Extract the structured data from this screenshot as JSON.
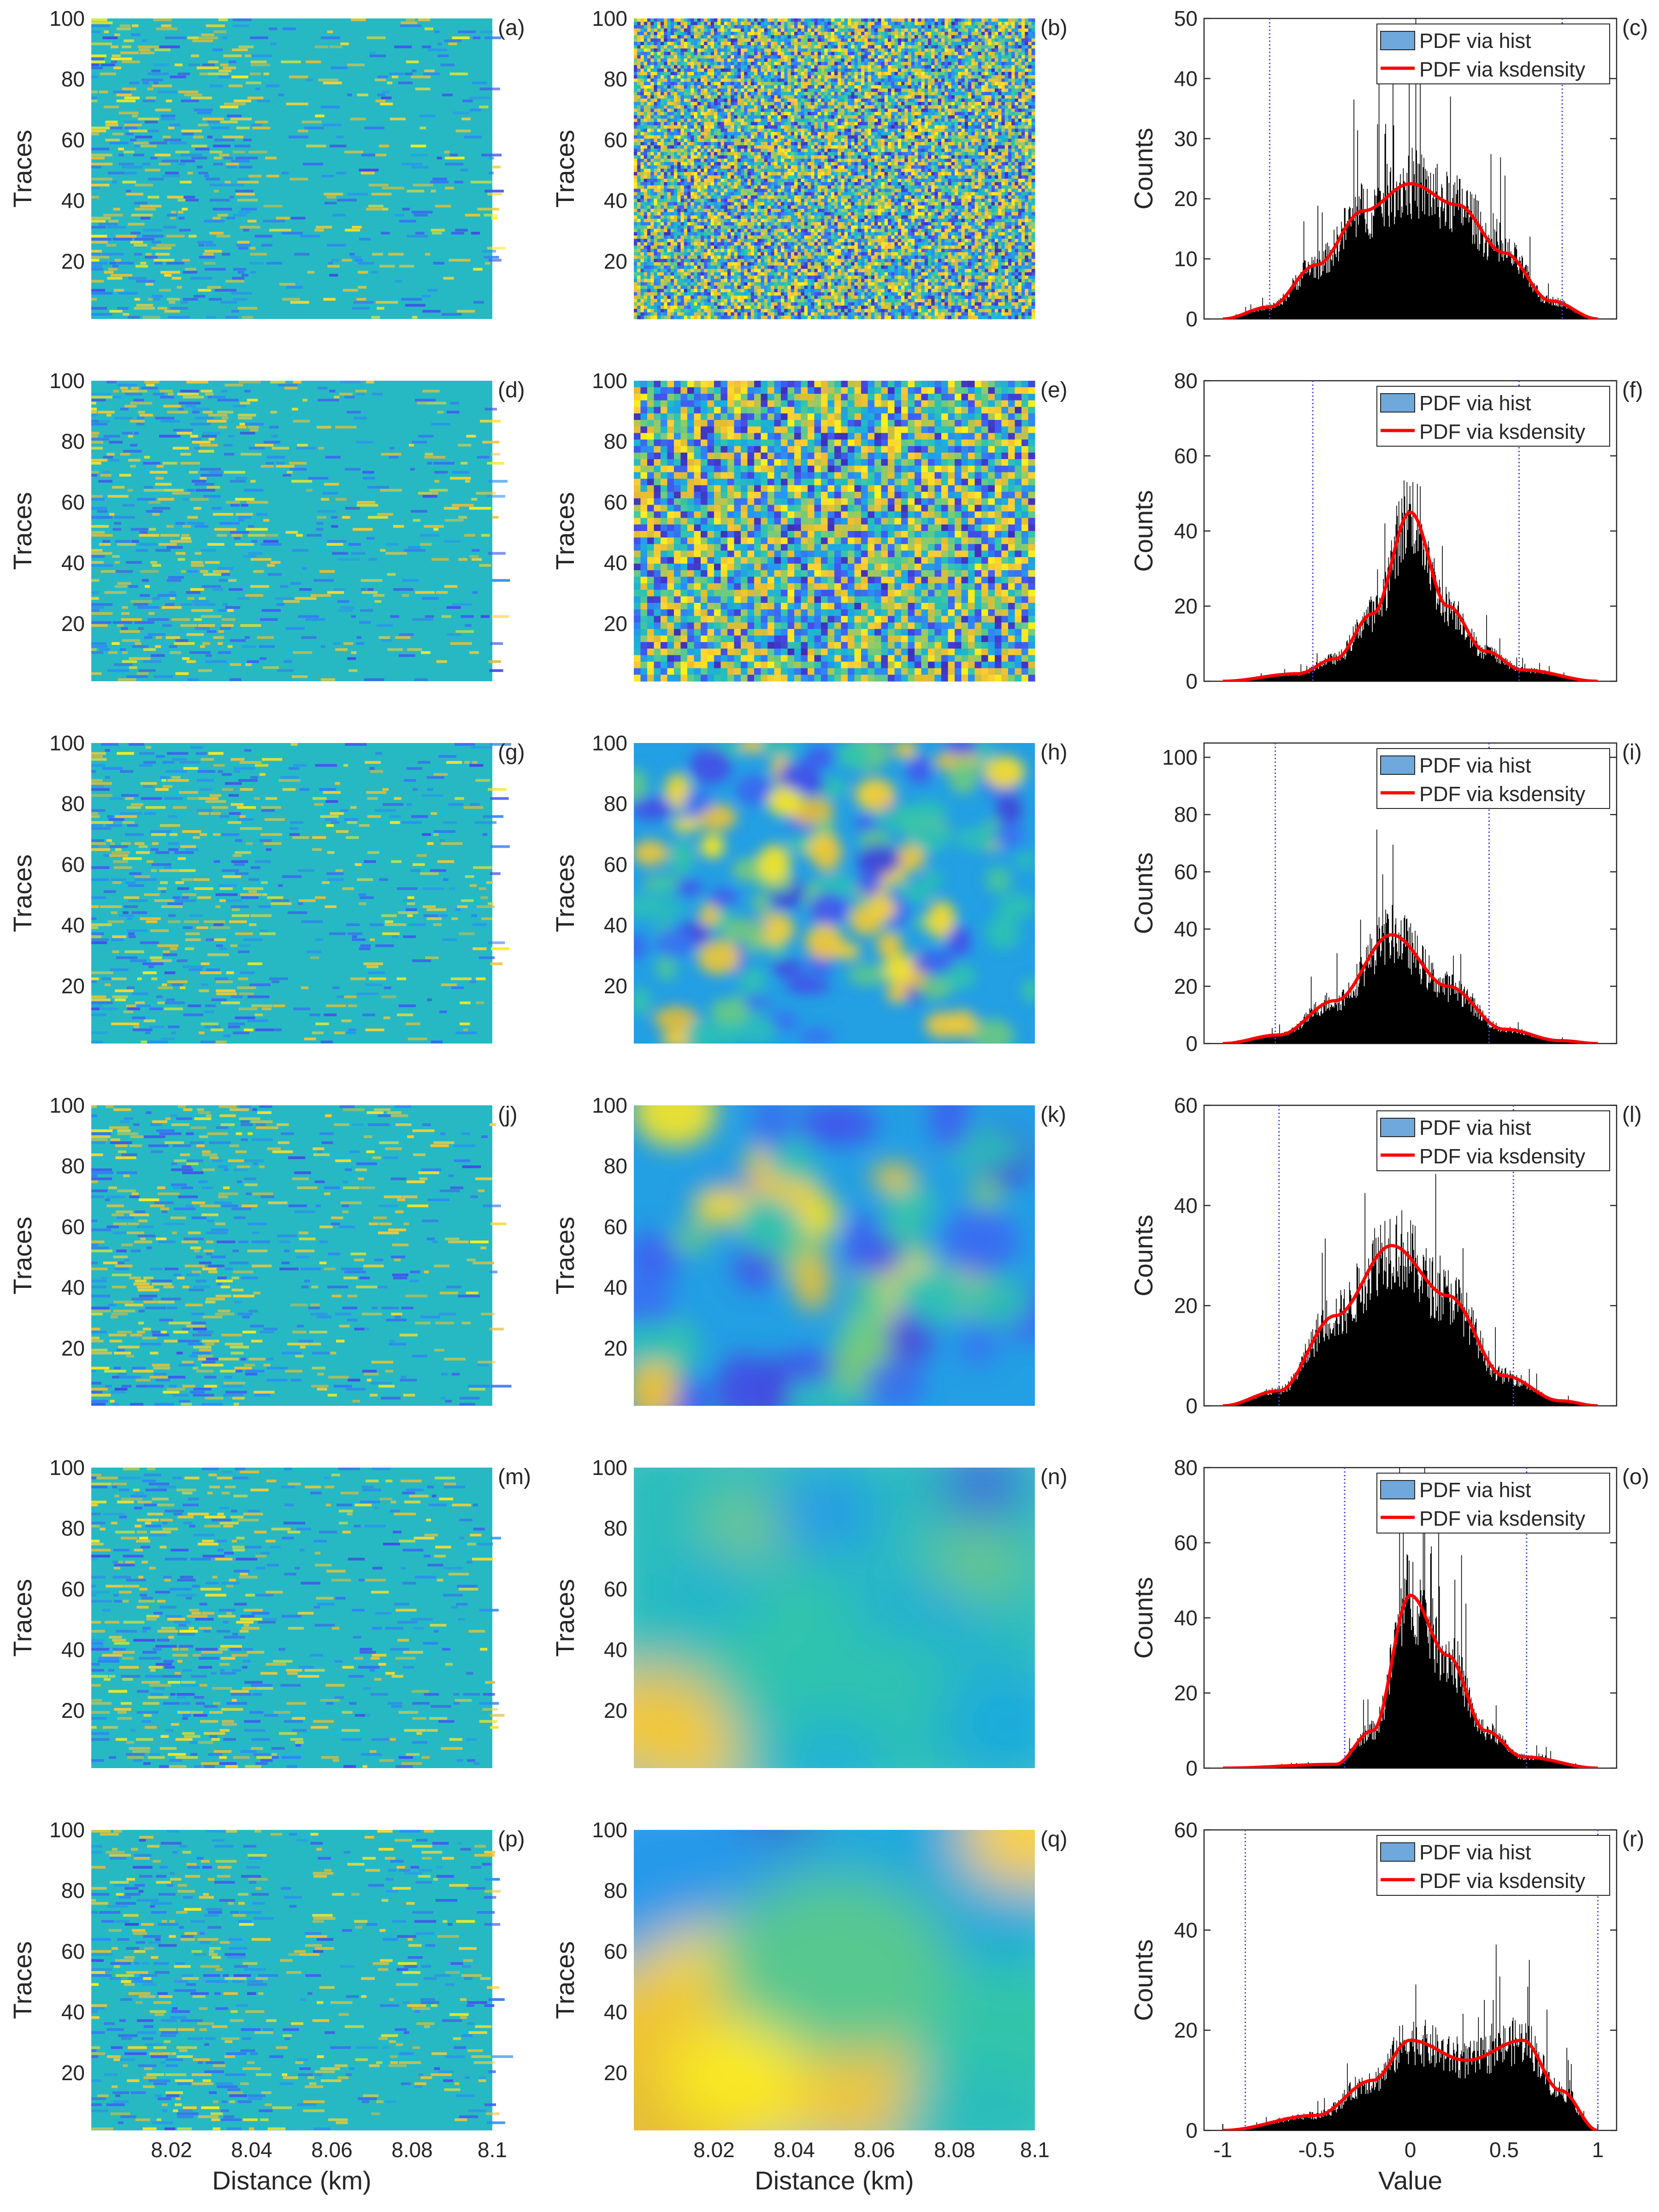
{
  "figure": {
    "x_label": "Distance (km)",
    "value_label": "Value",
    "y_label_image": "Traces",
    "y_label_hist": "Counts",
    "colormap_colors": [
      "#3e26a8",
      "#4353f0",
      "#2d8af4",
      "#1bb0d8",
      "#33c5aa",
      "#8ccc6a",
      "#e4bb34",
      "#fccf33",
      "#f9fb15"
    ],
    "hist_color": "#000000",
    "ksdensity_color": "#ff0000",
    "legend_patch_color": "#6fa8dc",
    "threshold_line_color": "#4a4adb"
  },
  "chart_data": [
    {
      "panel": "(a)",
      "type": "heatmap",
      "pattern": "traces",
      "ylabel": "Traces",
      "xlabel": "",
      "xlim": [
        8.0,
        8.1
      ],
      "ylim": [
        1,
        100
      ],
      "yticks": [
        20,
        40,
        60,
        80,
        100
      ],
      "xticks": []
    },
    {
      "panel": "(b)",
      "type": "heatmap",
      "pattern": "random-fine",
      "ylabel": "Traces",
      "xlabel": "",
      "xlim": [
        8.0,
        8.1
      ],
      "ylim": [
        1,
        100
      ],
      "yticks": [
        20,
        40,
        60,
        80,
        100
      ],
      "xticks": []
    },
    {
      "panel": "(c)",
      "type": "bar",
      "ylabel": "Counts",
      "xlabel": "",
      "xlim": [
        -1.1,
        1.1
      ],
      "ylim": [
        0,
        50
      ],
      "yticks": [
        0,
        10,
        20,
        30,
        40,
        50
      ],
      "xticks": [],
      "legend": [
        "PDF via hist",
        "PDF via ksdensity"
      ],
      "legend_position": "top-right",
      "thresholds": [
        -0.75,
        0.81
      ],
      "density": {
        "x": [
          -1.0,
          -0.75,
          -0.5,
          -0.25,
          0.0,
          0.25,
          0.5,
          0.75,
          1.0
        ],
        "y": [
          0,
          2,
          9,
          18,
          22.5,
          19,
          11,
          3,
          0
        ]
      }
    },
    {
      "panel": "(d)",
      "type": "heatmap",
      "pattern": "traces",
      "ylabel": "Traces",
      "xlabel": "",
      "xlim": [
        8.0,
        8.1
      ],
      "ylim": [
        1,
        100
      ],
      "yticks": [
        20,
        40,
        60,
        80,
        100
      ],
      "xticks": []
    },
    {
      "panel": "(e)",
      "type": "heatmap",
      "pattern": "random-medium",
      "ylabel": "Traces",
      "xlabel": "",
      "xlim": [
        8.0,
        8.1
      ],
      "ylim": [
        1,
        100
      ],
      "yticks": [
        20,
        40,
        60,
        80,
        100
      ],
      "xticks": []
    },
    {
      "panel": "(f)",
      "type": "bar",
      "ylabel": "Counts",
      "xlabel": "",
      "xlim": [
        -1.1,
        1.1
      ],
      "ylim": [
        0,
        80
      ],
      "yticks": [
        0,
        20,
        40,
        60,
        80
      ],
      "xticks": [],
      "legend": [
        "PDF via hist",
        "PDF via ksdensity"
      ],
      "legend_position": "top-right",
      "thresholds": [
        -0.52,
        0.58
      ],
      "density": {
        "x": [
          -1.0,
          -0.6,
          -0.4,
          -0.2,
          0.0,
          0.2,
          0.4,
          0.6,
          1.0
        ],
        "y": [
          0,
          2,
          6,
          18,
          45,
          20,
          8,
          3,
          0
        ]
      }
    },
    {
      "panel": "(g)",
      "type": "heatmap",
      "pattern": "traces",
      "ylabel": "Traces",
      "xlabel": "",
      "xlim": [
        8.0,
        8.1
      ],
      "ylim": [
        1,
        100
      ],
      "yticks": [
        20,
        40,
        60,
        80,
        100
      ],
      "xticks": []
    },
    {
      "panel": "(h)",
      "type": "heatmap",
      "pattern": "blobs-small",
      "ylabel": "Traces",
      "xlabel": "",
      "xlim": [
        8.0,
        8.1
      ],
      "ylim": [
        1,
        100
      ],
      "yticks": [
        20,
        40,
        60,
        80,
        100
      ],
      "xticks": []
    },
    {
      "panel": "(i)",
      "type": "bar",
      "ylabel": "Counts",
      "xlabel": "",
      "xlim": [
        -1.1,
        1.1
      ],
      "ylim": [
        0,
        105
      ],
      "yticks": [
        0,
        20,
        40,
        60,
        80,
        100
      ],
      "xticks": [],
      "legend": [
        "PDF via hist",
        "PDF via ksdensity"
      ],
      "legend_position": "top-right",
      "thresholds": [
        -0.72,
        0.42
      ],
      "density": {
        "x": [
          -1.0,
          -0.7,
          -0.4,
          -0.1,
          0.2,
          0.5,
          0.8,
          1.0
        ],
        "y": [
          0,
          3,
          15,
          38,
          20,
          5,
          1,
          0
        ]
      }
    },
    {
      "panel": "(j)",
      "type": "heatmap",
      "pattern": "traces",
      "ylabel": "Traces",
      "xlabel": "",
      "xlim": [
        8.0,
        8.1
      ],
      "ylim": [
        1,
        100
      ],
      "yticks": [
        20,
        40,
        60,
        80,
        100
      ],
      "xticks": []
    },
    {
      "panel": "(k)",
      "type": "heatmap",
      "pattern": "blobs-large",
      "ylabel": "Traces",
      "xlabel": "",
      "xlim": [
        8.0,
        8.1
      ],
      "ylim": [
        1,
        100
      ],
      "yticks": [
        20,
        40,
        60,
        80,
        100
      ],
      "xticks": []
    },
    {
      "panel": "(l)",
      "type": "bar",
      "ylabel": "Counts",
      "xlabel": "",
      "xlim": [
        -1.1,
        1.1
      ],
      "ylim": [
        0,
        60
      ],
      "yticks": [
        0,
        20,
        40,
        60
      ],
      "xticks": [],
      "legend": [
        "PDF via hist",
        "PDF via ksdensity"
      ],
      "legend_position": "top-right",
      "thresholds": [
        -0.7,
        0.55
      ],
      "density": {
        "x": [
          -1.0,
          -0.7,
          -0.4,
          -0.1,
          0.2,
          0.5,
          0.8,
          1.0
        ],
        "y": [
          0,
          3,
          18,
          32,
          22,
          6,
          1,
          0
        ]
      }
    },
    {
      "panel": "(m)",
      "type": "heatmap",
      "pattern": "traces",
      "ylabel": "Traces",
      "xlabel": "",
      "xlim": [
        8.0,
        8.1
      ],
      "ylim": [
        1,
        100
      ],
      "yticks": [
        20,
        40,
        60,
        80,
        100
      ],
      "xticks": []
    },
    {
      "panel": "(n)",
      "type": "heatmap",
      "pattern": "smooth-n",
      "ylabel": "Traces",
      "xlabel": "",
      "xlim": [
        8.0,
        8.1
      ],
      "ylim": [
        1,
        100
      ],
      "yticks": [
        20,
        40,
        60,
        80,
        100
      ],
      "xticks": []
    },
    {
      "panel": "(o)",
      "type": "bar",
      "ylabel": "Counts",
      "xlabel": "",
      "xlim": [
        -1.1,
        1.1
      ],
      "ylim": [
        0,
        80
      ],
      "yticks": [
        0,
        20,
        40,
        60,
        80
      ],
      "xticks": [],
      "legend": [
        "PDF via hist",
        "PDF via ksdensity"
      ],
      "legend_position": "top-right",
      "thresholds": [
        -0.35,
        0.62
      ],
      "density": {
        "x": [
          -1.0,
          -0.4,
          -0.2,
          0.0,
          0.2,
          0.4,
          0.6,
          1.0
        ],
        "y": [
          0,
          1,
          10,
          46,
          30,
          10,
          3,
          0
        ]
      }
    },
    {
      "panel": "(p)",
      "type": "heatmap",
      "pattern": "traces",
      "ylabel": "Traces",
      "xlabel": "Distance (km)",
      "xlim": [
        8.0,
        8.1
      ],
      "ylim": [
        1,
        100
      ],
      "yticks": [
        20,
        40,
        60,
        80,
        100
      ],
      "xticks": [
        8.02,
        8.04,
        8.06,
        8.08,
        8.1
      ]
    },
    {
      "panel": "(q)",
      "type": "heatmap",
      "pattern": "smooth-q",
      "ylabel": "Traces",
      "xlabel": "Distance (km)",
      "xlim": [
        8.0,
        8.1
      ],
      "ylim": [
        1,
        100
      ],
      "yticks": [
        20,
        40,
        60,
        80,
        100
      ],
      "xticks": [
        8.02,
        8.04,
        8.06,
        8.08,
        8.1
      ]
    },
    {
      "panel": "(r)",
      "type": "bar",
      "ylabel": "Counts",
      "xlabel": "Value",
      "xlim": [
        -1.1,
        1.1
      ],
      "ylim": [
        0,
        60
      ],
      "yticks": [
        0,
        20,
        40,
        60
      ],
      "xticks": [
        -1,
        -0.5,
        0,
        0.5,
        1
      ],
      "legend": [
        "PDF via hist",
        "PDF via ksdensity"
      ],
      "legend_position": "top-right",
      "thresholds": [
        -0.88,
        1.0
      ],
      "density": {
        "x": [
          -1.0,
          -0.5,
          -0.2,
          0.0,
          0.3,
          0.6,
          0.8,
          1.0
        ],
        "y": [
          0,
          3,
          10,
          18,
          14,
          18,
          8,
          0
        ]
      }
    }
  ]
}
